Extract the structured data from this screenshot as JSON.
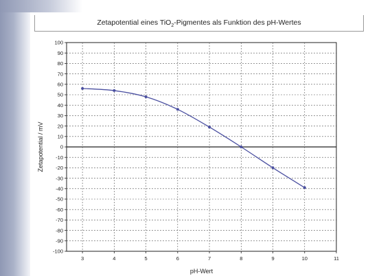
{
  "chart_data": {
    "type": "line",
    "title_pre": "Zetapotential eines TiO",
    "title_sub": "2",
    "title_post": "-Pigmentes als Funktion des pH-Wertes",
    "xlabel": "pH-Wert",
    "ylabel": "Zetapotential / mV",
    "xlim": [
      2.5,
      11
    ],
    "ylim": [
      -100,
      100
    ],
    "xticks": [
      3,
      4,
      5,
      6,
      7,
      8,
      9,
      10,
      11
    ],
    "yticks": [
      100,
      90,
      80,
      70,
      60,
      50,
      40,
      30,
      20,
      10,
      0,
      -10,
      -20,
      -30,
      -40,
      -50,
      -60,
      -70,
      -80,
      -90,
      -100
    ],
    "grid": true,
    "series": [
      {
        "x": [
          3,
          4,
          5,
          6,
          7,
          8,
          9,
          10
        ],
        "y": [
          56,
          54,
          48,
          36,
          19,
          0,
          -20,
          -39
        ],
        "color": "#4a4fa0"
      }
    ]
  }
}
